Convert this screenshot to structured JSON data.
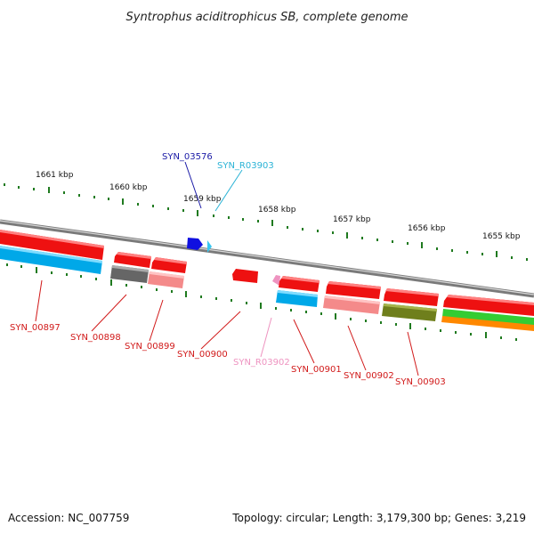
{
  "title": "Syntrophus aciditrophicus SB, complete genome",
  "footer": {
    "accession": "Accession: NC_007759",
    "summary": "Topology: circular; Length: 3,179,300 bp; Genes: 3,219"
  },
  "kbp_labels": [
    "1661 kbp",
    "1660 kbp",
    "1659 kbp",
    "1658 kbp",
    "1657 kbp",
    "1656 kbp",
    "1655 kbp"
  ],
  "gene_labels": [
    {
      "text": "SYN_03576",
      "color": "#1a1aa6"
    },
    {
      "text": "SYN_R03903",
      "color": "#2bb3d6"
    },
    {
      "text": "SYN_00897",
      "color": "#d11a1a"
    },
    {
      "text": "SYN_00898",
      "color": "#d11a1a"
    },
    {
      "text": "SYN_00899",
      "color": "#d11a1a"
    },
    {
      "text": "SYN_00900",
      "color": "#d11a1a"
    },
    {
      "text": "SYN_R03902",
      "color": "#ee93c0"
    },
    {
      "text": "SYN_00901",
      "color": "#d11a1a"
    },
    {
      "text": "SYN_00902",
      "color": "#d11a1a"
    },
    {
      "text": "SYN_00903",
      "color": "#d11a1a"
    }
  ],
  "colors": {
    "cds": "#ee1111",
    "cds_light": "#f48a8a",
    "rrna": "#ee93c0",
    "trna": "#00a8e8",
    "trna_light": "#39c6f0",
    "gene_blue": "#1010e0",
    "gray": "#666666",
    "olive": "#6f7f1c",
    "green": "#33cc33",
    "orange": "#ff8800",
    "backbone": "#888888",
    "tick": "#1f7a1f"
  }
}
